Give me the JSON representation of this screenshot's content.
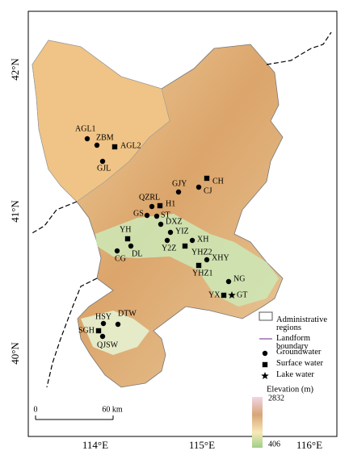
{
  "axes": {
    "lat_labels": [
      "42°N",
      "41°N",
      "40°N"
    ],
    "lon_labels": [
      "114°E",
      "115°E",
      "116°E"
    ]
  },
  "sites": [
    {
      "label": "AGL1",
      "marker": "circle"
    },
    {
      "label": "ZBM",
      "marker": "circle"
    },
    {
      "label": "AGL2",
      "marker": "square"
    },
    {
      "label": "GJL",
      "marker": "circle"
    },
    {
      "label": "GJY",
      "marker": "circle"
    },
    {
      "label": "CH",
      "marker": "square"
    },
    {
      "label": "CJ",
      "marker": "circle"
    },
    {
      "label": "QZRL",
      "marker": "circle"
    },
    {
      "label": "H1",
      "marker": "square"
    },
    {
      "label": "GS",
      "marker": "circle"
    },
    {
      "label": "ST",
      "marker": "circle"
    },
    {
      "label": "DXZ",
      "marker": "circle"
    },
    {
      "label": "YIZ",
      "marker": "circle"
    },
    {
      "label": "YH",
      "marker": "square"
    },
    {
      "label": "XH",
      "marker": "circle"
    },
    {
      "label": "Y2Z",
      "marker": "circle"
    },
    {
      "label": "YHZ2",
      "marker": "square"
    },
    {
      "label": "DL",
      "marker": "circle"
    },
    {
      "label": "CG",
      "marker": "circle"
    },
    {
      "label": "XHY",
      "marker": "circle"
    },
    {
      "label": "YHZ1",
      "marker": "square"
    },
    {
      "label": "NG",
      "marker": "circle"
    },
    {
      "label": "YX",
      "marker": "square"
    },
    {
      "label": "GT",
      "marker": "star"
    },
    {
      "label": "HSY",
      "marker": "circle"
    },
    {
      "label": "DTW",
      "marker": "circle"
    },
    {
      "label": "SGH",
      "marker": "square"
    },
    {
      "label": "QJSW",
      "marker": "circle"
    }
  ],
  "legend": {
    "items": [
      {
        "label": "Administrative regions",
        "marker": "box"
      },
      {
        "label": "Landform boundary",
        "marker": "line"
      },
      {
        "label": "Groundwater",
        "marker": "circle"
      },
      {
        "label": "Surface water",
        "marker": "square"
      },
      {
        "label": "Lake water",
        "marker": "star"
      }
    ],
    "elevation": {
      "title": "Elevation (m)",
      "max": 2832,
      "min": 406
    }
  },
  "scale_bar": {
    "zero": "0",
    "length": "60 km"
  }
}
